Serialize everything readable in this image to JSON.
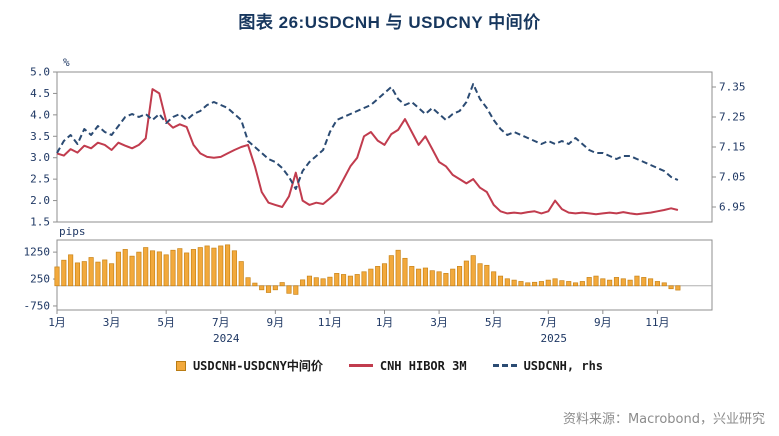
{
  "title": "图表 26:USDCNH 与 USDCNY 中间价",
  "source": "资料来源：Macrobond，兴业研究",
  "colors": {
    "title": "#17375E",
    "axis_text": "#1F3864",
    "hibor_line": "#C13C4E",
    "usdcnh_line": "#2B4B73",
    "bar_fill": "#F2A93C",
    "bar_edge": "#C98418"
  },
  "legend": [
    {
      "label": "USDCNH-USDCNY中间价",
      "swatch": "bar",
      "color": "#F2A93C"
    },
    {
      "label": "CNH HIBOR 3M",
      "swatch": "line",
      "color": "#C13C4E"
    },
    {
      "label": "USDCNH, rhs",
      "swatch": "dashed-line",
      "color": "#2B4B73"
    }
  ],
  "chart_data": {
    "type": "mixed",
    "x_axis": {
      "unit": "months since 2024-01",
      "range": [
        0,
        24
      ],
      "tick_positions": [
        0,
        2,
        4,
        6,
        8,
        10,
        12,
        14,
        16,
        18,
        20,
        22
      ],
      "tick_labels": [
        "1月",
        "3月",
        "5月",
        "7月",
        "9月",
        "11月",
        "1月",
        "3月",
        "5月",
        "7月",
        "9月",
        "11月"
      ],
      "year_labels": [
        {
          "text": "2024",
          "pos": 6.2
        },
        {
          "text": "2025",
          "pos": 18.2
        }
      ]
    },
    "panels": [
      {
        "type": "line",
        "x_start": 0,
        "x_step": 0.25,
        "left_axis": {
          "label": "%",
          "ticks": [
            5.0,
            4.5,
            4.0,
            3.5,
            3.0,
            2.5,
            2.0,
            1.5
          ],
          "range": [
            1.5,
            5.0
          ],
          "decimals": 1
        },
        "right_axis": {
          "ticks": [
            7.35,
            7.25,
            7.15,
            7.05,
            6.95
          ],
          "range": [
            6.9,
            7.4
          ],
          "decimals": 2
        },
        "series": [
          {
            "name": "CNH HIBOR 3M",
            "axis": "left",
            "style": "solid",
            "color": "#C13C4E",
            "values": [
              3.1,
              3.05,
              3.2,
              3.12,
              3.28,
              3.22,
              3.35,
              3.3,
              3.18,
              3.35,
              3.28,
              3.22,
              3.3,
              3.45,
              4.6,
              4.5,
              3.85,
              3.7,
              3.78,
              3.72,
              3.3,
              3.1,
              3.02,
              3.0,
              3.02,
              3.1,
              3.18,
              3.25,
              3.3,
              2.8,
              2.2,
              1.95,
              1.9,
              1.85,
              2.1,
              2.65,
              2.0,
              1.9,
              1.95,
              1.92,
              2.05,
              2.2,
              2.5,
              2.8,
              3.0,
              3.5,
              3.6,
              3.4,
              3.3,
              3.55,
              3.65,
              3.9,
              3.6,
              3.3,
              3.5,
              3.2,
              2.9,
              2.8,
              2.6,
              2.5,
              2.4,
              2.5,
              2.3,
              2.2,
              1.9,
              1.75,
              1.7,
              1.72,
              1.7,
              1.73,
              1.75,
              1.7,
              1.75,
              2.0,
              1.8,
              1.72,
              1.7,
              1.72,
              1.7,
              1.68,
              1.7,
              1.72,
              1.7,
              1.73,
              1.7,
              1.68,
              1.7,
              1.72,
              1.75,
              1.78,
              1.82,
              1.78
            ]
          },
          {
            "name": "USDCNH, rhs",
            "axis": "right",
            "style": "dashed",
            "color": "#2B4B73",
            "values": [
              7.13,
              7.17,
              7.19,
              7.16,
              7.21,
              7.19,
              7.22,
              7.2,
              7.19,
              7.22,
              7.25,
              7.26,
              7.25,
              7.26,
              7.24,
              7.26,
              7.23,
              7.25,
              7.26,
              7.24,
              7.26,
              7.27,
              7.29,
              7.3,
              7.29,
              7.28,
              7.26,
              7.24,
              7.17,
              7.15,
              7.13,
              7.11,
              7.1,
              7.08,
              7.05,
              7.01,
              7.07,
              7.1,
              7.12,
              7.14,
              7.2,
              7.24,
              7.25,
              7.26,
              7.27,
              7.28,
              7.29,
              7.31,
              7.33,
              7.35,
              7.31,
              7.29,
              7.3,
              7.28,
              7.26,
              7.28,
              7.26,
              7.24,
              7.26,
              7.27,
              7.3,
              7.36,
              7.31,
              7.28,
              7.24,
              7.21,
              7.19,
              7.2,
              7.19,
              7.18,
              7.17,
              7.16,
              7.17,
              7.16,
              7.17,
              7.16,
              7.18,
              7.16,
              7.14,
              7.13,
              7.13,
              7.12,
              7.11,
              7.12,
              7.12,
              7.11,
              7.1,
              7.09,
              7.08,
              7.07,
              7.05,
              7.04
            ]
          }
        ]
      },
      {
        "type": "bar",
        "x_start": 0,
        "x_step": 0.25,
        "left_axis": {
          "label": "pips",
          "ticks": [
            1250,
            250,
            -750
          ],
          "range": [
            -900,
            1700
          ],
          "decimals": 0
        },
        "series": [
          {
            "name": "USDCNH-USDCNY中间价",
            "color": "#F2A93C",
            "edge_color": "#C98418",
            "values": [
              700,
              950,
              1150,
              850,
              900,
              1050,
              880,
              960,
              820,
              1250,
              1350,
              1100,
              1250,
              1420,
              1300,
              1260,
              1150,
              1320,
              1380,
              1220,
              1350,
              1420,
              1480,
              1400,
              1480,
              1520,
              1300,
              900,
              300,
              100,
              -150,
              -250,
              -150,
              120,
              -280,
              -320,
              220,
              360,
              300,
              260,
              320,
              460,
              420,
              360,
              420,
              520,
              620,
              720,
              820,
              1120,
              1320,
              1020,
              720,
              620,
              660,
              560,
              520,
              460,
              620,
              720,
              920,
              1120,
              820,
              760,
              520,
              360,
              260,
              210,
              160,
              110,
              130,
              160,
              210,
              260,
              190,
              160,
              110,
              160,
              310,
              360,
              260,
              210,
              310,
              260,
              210,
              360,
              310,
              260,
              160,
              110,
              -110,
              -160
            ]
          }
        ]
      }
    ]
  }
}
